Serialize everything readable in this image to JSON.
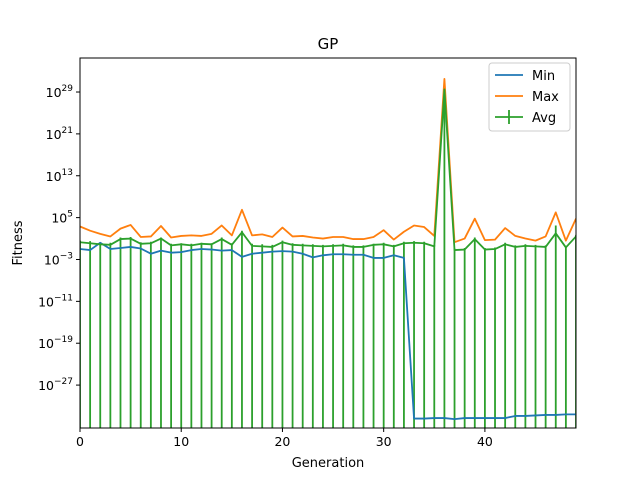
{
  "chart_data": {
    "type": "line",
    "title": "GP",
    "xlabel": "Generation",
    "ylabel": "Fitness",
    "xlim": [
      0,
      49
    ],
    "ylim_log10": [
      -35.2,
      35.5
    ],
    "yscale": "log",
    "x_ticks": [
      0,
      10,
      20,
      30,
      40
    ],
    "y_ticks": [
      {
        "exp": 29,
        "base": "10",
        "sup": "29"
      },
      {
        "exp": 21,
        "base": "10",
        "sup": "21"
      },
      {
        "exp": 13,
        "base": "10",
        "sup": "13"
      },
      {
        "exp": 5,
        "base": "10",
        "sup": "5"
      },
      {
        "exp": -3,
        "base": "10",
        "sup": "−3"
      },
      {
        "exp": -11,
        "base": "10",
        "sup": "−11"
      },
      {
        "exp": -19,
        "base": "10",
        "sup": "−19"
      },
      {
        "exp": -27,
        "base": "10",
        "sup": "−27"
      }
    ],
    "legend_position": "top-right",
    "x": [
      0,
      1,
      2,
      3,
      4,
      5,
      6,
      7,
      8,
      9,
      10,
      11,
      12,
      13,
      14,
      15,
      16,
      17,
      18,
      19,
      20,
      21,
      22,
      23,
      24,
      25,
      26,
      27,
      28,
      29,
      30,
      31,
      32,
      33,
      34,
      35,
      36,
      37,
      38,
      39,
      40,
      41,
      42,
      43,
      44,
      45,
      46,
      47,
      48,
      49
    ],
    "series": [
      {
        "name": "Min",
        "color": "#1f77b4",
        "log10_values": [
          -1.0,
          -1.2,
          0.2,
          -1.0,
          -0.8,
          -0.6,
          -0.9,
          -1.9,
          -1.3,
          -1.7,
          -1.6,
          -1.2,
          -1.0,
          -1.1,
          -1.3,
          -1.2,
          -2.5,
          -1.9,
          -1.7,
          -1.5,
          -1.4,
          -1.5,
          -1.9,
          -2.6,
          -2.2,
          -2.0,
          -2.0,
          -2.1,
          -2.1,
          -2.7,
          -2.7,
          -2.2,
          -2.7,
          -33.4,
          -33.4,
          -33.3,
          -33.3,
          -33.5,
          -33.3,
          -33.3,
          -33.3,
          -33.3,
          -33.3,
          -32.9,
          -32.9,
          -32.8,
          -32.7,
          -32.7,
          -32.6,
          -32.6
        ]
      },
      {
        "name": "Max",
        "color": "#ff7f0e",
        "log10_values": [
          3.3,
          2.5,
          1.9,
          1.4,
          2.9,
          3.6,
          1.3,
          1.4,
          3.4,
          1.2,
          1.5,
          1.6,
          1.5,
          1.9,
          3.5,
          1.6,
          6.5,
          1.6,
          1.8,
          1.3,
          3.1,
          1.4,
          1.5,
          1.2,
          1.0,
          1.3,
          1.3,
          0.9,
          0.9,
          1.3,
          2.6,
          0.8,
          2.3,
          3.5,
          3.2,
          1.5,
          31.5,
          0.3,
          1.0,
          4.8,
          0.7,
          0.8,
          3.0,
          1.5,
          1.0,
          0.6,
          1.4,
          6.0,
          0.6,
          4.8
        ]
      },
      {
        "name": "Avg",
        "color": "#2ca02c",
        "log10_values": [
          0.3,
          0.1,
          -0.1,
          -0.2,
          0.9,
          1.0,
          0.0,
          0.1,
          1.0,
          -0.3,
          -0.1,
          -0.3,
          0.0,
          -0.1,
          0.9,
          -0.2,
          2.2,
          -0.4,
          -0.5,
          -0.6,
          0.3,
          -0.2,
          -0.3,
          -0.4,
          -0.5,
          -0.4,
          -0.3,
          -0.6,
          -0.6,
          -0.2,
          -0.1,
          -0.5,
          0.1,
          0.2,
          0.1,
          -0.5,
          29.5,
          -1.2,
          -1.1,
          0.9,
          -1.1,
          -1.0,
          -0.1,
          -0.6,
          -0.4,
          -0.5,
          -0.6,
          2.0,
          -0.7,
          1.4
        ],
        "error_upper_log10": [
          0.6,
          0.5,
          0.2,
          0.2,
          1.2,
          1.3,
          0.3,
          0.4,
          1.2,
          0.0,
          0.1,
          0.0,
          0.2,
          0.1,
          1.2,
          0.1,
          2.5,
          0.0,
          -0.1,
          -0.2,
          0.6,
          0.1,
          0.0,
          -0.1,
          -0.2,
          -0.1,
          0.0,
          -0.3,
          -0.3,
          0.0,
          0.2,
          -0.2,
          0.4,
          0.5,
          0.4,
          -0.2,
          31.0,
          -0.9,
          -0.8,
          1.2,
          -0.8,
          -0.7,
          0.2,
          -0.3,
          -0.1,
          -0.2,
          -0.3,
          3.5,
          -0.4,
          1.7
        ],
        "error_lower_reaches_axis": true
      }
    ]
  }
}
